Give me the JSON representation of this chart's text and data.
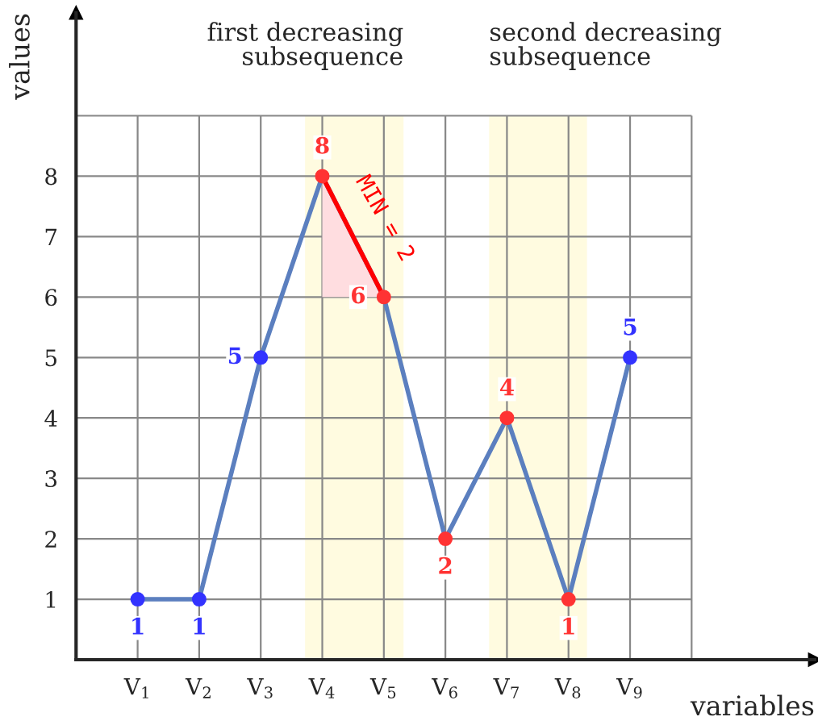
{
  "chart_data": {
    "type": "line",
    "xlabel": "variables",
    "ylabel": "values",
    "x": [
      1,
      2,
      3,
      4,
      5,
      6,
      7,
      8,
      9
    ],
    "series": [
      {
        "color": "#5b7fbf",
        "values": [
          1,
          1,
          5,
          8,
          6,
          2,
          4,
          1,
          5
        ],
        "colors": [
          "#3333ff",
          "#3333ff",
          "#3333ff",
          "#ff3333",
          "#ff3333",
          "#ff3333",
          "#ff3333",
          "#ff3333",
          "#3333ff"
        ],
        "data_labels": true
      },
      {
        "color": "#ff0000",
        "x": [
          4,
          5
        ],
        "values": [
          8,
          6
        ],
        "lower": [
          6,
          6
        ],
        "upper": [
          8,
          6
        ],
        "marker": "none"
      }
    ],
    "xlim": [
      0,
      12
    ],
    "ylim": [
      0,
      10.7
    ],
    "xticks": [
      {
        "value": 1,
        "label": "V$_{1}$"
      },
      {
        "value": 2,
        "label": "V$_{2}$"
      },
      {
        "value": 3,
        "label": "V$_{3}$"
      },
      {
        "value": 4,
        "label": "V$_{4}$"
      },
      {
        "value": 5,
        "label": "V$_{5}$"
      },
      {
        "value": 6,
        "label": "V$_{6}$"
      },
      {
        "value": 7,
        "label": "V$_{7}$"
      },
      {
        "value": 8,
        "label": "V$_{8}$"
      },
      {
        "value": 9,
        "label": "V$_{9}$"
      },
      {
        "value": 10,
        "label": null
      }
    ],
    "yticks": [
      1,
      2,
      3,
      4,
      5,
      6,
      7,
      8,
      {
        "value": 9,
        "label": null
      }
    ],
    "bands": [
      {
        "axis": "x",
        "from": 3.72,
        "to": 5.32,
        "label": "first decreasing\nsubsequence",
        "color": "#fffbe0"
      },
      {
        "axis": "x",
        "from": 6.71,
        "to": 8.3,
        "label": "second decreasing\nsubsequence",
        "color": "#fffbe0"
      }
    ],
    "annotations": [
      "MIN = 2"
    ],
    "grid": true,
    "marker": "circle",
    "line_style": "solid",
    "legend": false
  }
}
